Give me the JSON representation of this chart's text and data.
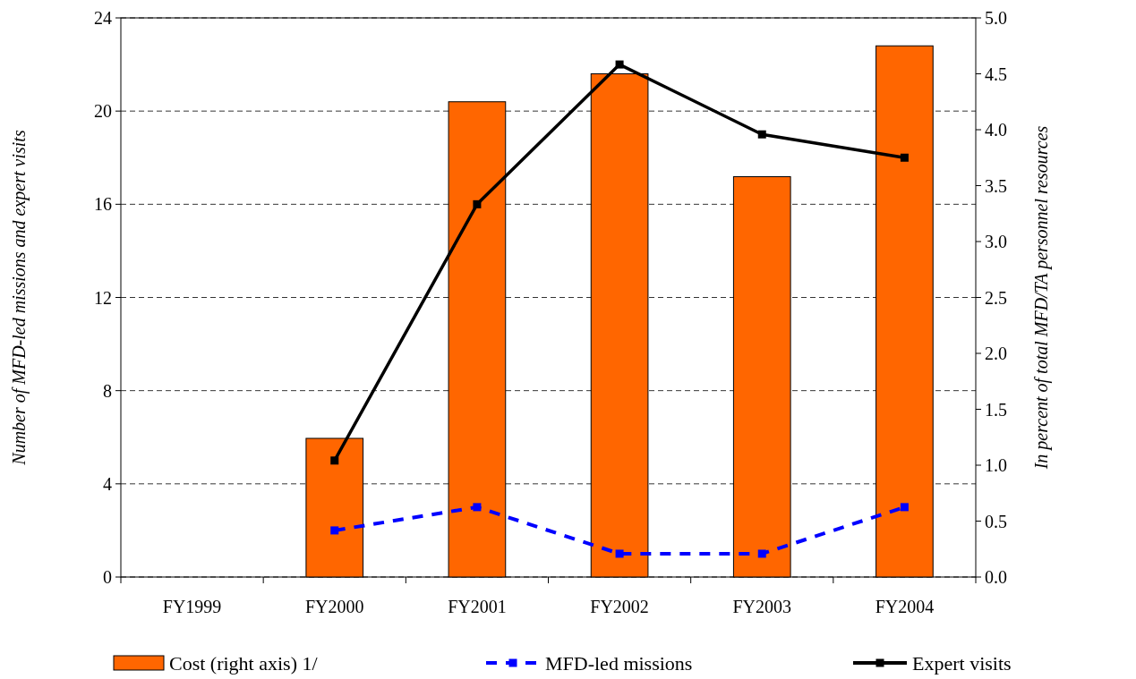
{
  "chart_data": {
    "type": "bar",
    "categories": [
      "FY1999",
      "FY2000",
      "FY2001",
      "FY2002",
      "FY2003",
      "FY2004"
    ],
    "ylabel": "Number of  MFD-led missions  and  expert visits",
    "y2label": "In  percent  of  total  MFD/TA  personnel  resources",
    "ylim": [
      0,
      24
    ],
    "yticks": [
      0,
      4,
      8,
      12,
      16,
      20,
      24
    ],
    "y2lim": [
      0,
      5
    ],
    "y2ticks": [
      {
        "value": 0,
        "label": "0.0"
      },
      {
        "value": 0.5,
        "label": "0.5"
      },
      {
        "value": 1,
        "label": "1.0"
      },
      {
        "value": 1.5,
        "label": "1.5"
      },
      {
        "value": 2,
        "label": "2.0"
      },
      {
        "value": 2.5,
        "label": "2.5"
      },
      {
        "value": 3,
        "label": "3.0"
      },
      {
        "value": 3.5,
        "label": "3.5"
      },
      {
        "value": 4,
        "label": "4.0"
      },
      {
        "value": 4.5,
        "label": "4.5"
      },
      {
        "value": 5,
        "label": "5.0"
      }
    ],
    "grid": "y",
    "legend": "bottom",
    "series": [
      {
        "name": "Cost (right axis) 1/",
        "axis": "y2",
        "color": "#ff6600",
        "values": [
          null,
          1.24,
          4.25,
          4.5,
          3.58,
          4.75
        ]
      },
      {
        "name": "MFD-led missions",
        "type": "line",
        "color": "#0000ff",
        "line_style": "dashed",
        "marker": "square",
        "values": [
          null,
          2,
          3,
          1,
          1,
          3
        ]
      },
      {
        "name": "Expert visits",
        "type": "line",
        "color": "#000000",
        "line_style": "solid",
        "marker": "square",
        "values": [
          null,
          5,
          16,
          22,
          19,
          18
        ]
      }
    ]
  }
}
